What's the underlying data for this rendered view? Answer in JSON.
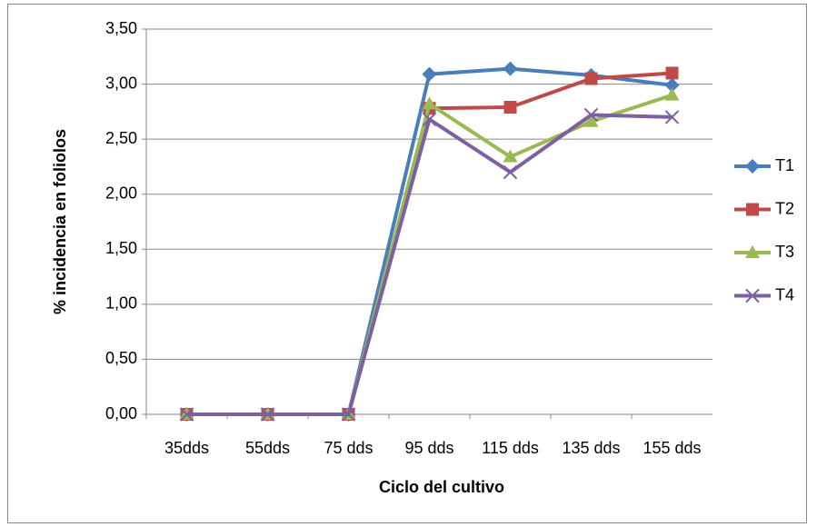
{
  "chart_data": {
    "type": "line",
    "x_label": "Ciclo del cultivo",
    "y_label": "% incidencia en foliolos",
    "categories": [
      "35dds",
      "55dds",
      "75 dds",
      "95 dds",
      "115 dds",
      "135 dds",
      "155 dds"
    ],
    "series": [
      {
        "name": "T1",
        "color": "#4a7ebb",
        "marker": "diamond",
        "values": [
          0,
          0,
          0,
          3.09,
          3.14,
          3.08,
          2.99
        ]
      },
      {
        "name": "T2",
        "color": "#be4b48",
        "marker": "square",
        "values": [
          0,
          0,
          0,
          2.78,
          2.79,
          3.05,
          3.1
        ]
      },
      {
        "name": "T3",
        "color": "#98b954",
        "marker": "triangle",
        "values": [
          0,
          0,
          0,
          2.82,
          2.34,
          2.66,
          2.9
        ]
      },
      {
        "name": "T4",
        "color": "#7d60a0",
        "marker": "x",
        "values": [
          0,
          0,
          0,
          2.68,
          2.2,
          2.72,
          2.7
        ]
      }
    ],
    "ylim": [
      0,
      3.5
    ],
    "yticks": [
      {
        "value": 0,
        "label": "0,00"
      },
      {
        "value": 0.5,
        "label": "0,50"
      },
      {
        "value": 1,
        "label": "1,00"
      },
      {
        "value": 1.5,
        "label": "1,50"
      },
      {
        "value": 2,
        "label": "2,00"
      },
      {
        "value": 2.5,
        "label": "2,50"
      },
      {
        "value": 3,
        "label": "3,00"
      },
      {
        "value": 3.5,
        "label": "3,50"
      }
    ],
    "grid": true,
    "legend": "right"
  }
}
